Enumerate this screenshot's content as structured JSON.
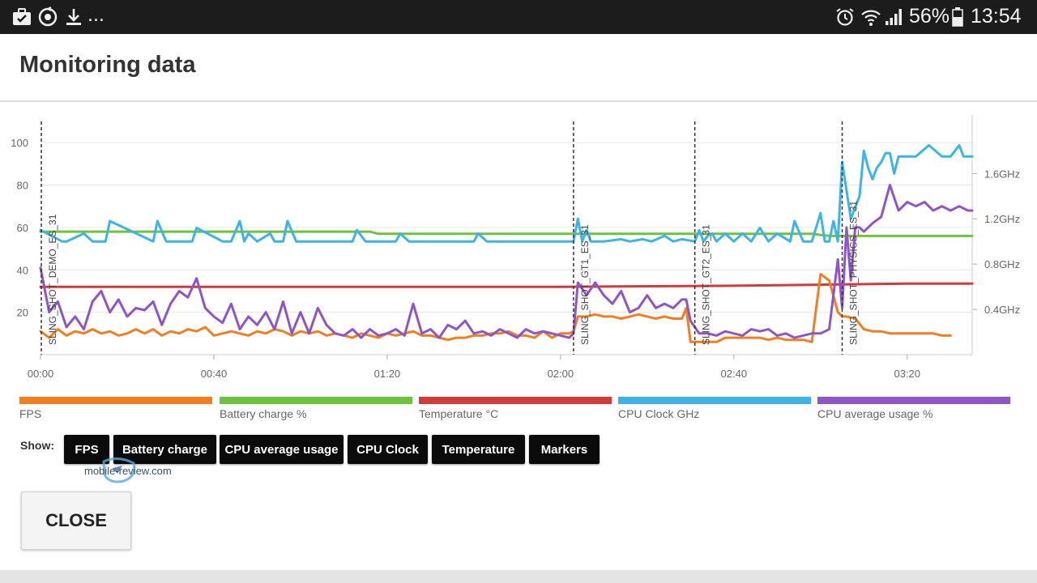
{
  "status_bar": {
    "icons_left": [
      "briefcase-check-icon",
      "sync-icon",
      "download-icon"
    ],
    "more": "...",
    "icons_right": [
      "alarm-icon",
      "wifi-icon",
      "signal-icon",
      "battery-icon"
    ],
    "battery": "56%",
    "time": "13:54"
  },
  "dialog": {
    "title": "Monitoring data",
    "show_label": "Show:",
    "toggles": [
      "FPS",
      "Battery charge",
      "CPU average usage",
      "CPU Clock",
      "Temperature",
      "Markers"
    ],
    "close_label": "CLOSE"
  },
  "watermark": "mobile-review.com",
  "legend": [
    {
      "label": "FPS",
      "color": "#f07f22"
    },
    {
      "label": "Battery charge %",
      "color": "#6fc23e"
    },
    {
      "label": "Temperature °C",
      "color": "#d23b3b"
    },
    {
      "label": "CPU Clock GHz",
      "color": "#3fb3e6"
    },
    {
      "label": "CPU average usage %",
      "color": "#8e55c5"
    }
  ],
  "chart_data": {
    "type": "line",
    "x_ticks": [
      "00:00",
      "00:40",
      "01:20",
      "02:00",
      "02:40",
      "03:20"
    ],
    "x_tick_seconds": [
      0,
      40,
      80,
      120,
      160,
      200
    ],
    "xlim": [
      0,
      215
    ],
    "y_left_ticks": [
      "100",
      "80",
      "60",
      "40",
      "20"
    ],
    "ylim_left": [
      0,
      110
    ],
    "y_right_ticks": [
      "1.6GHz",
      "1.2GHz",
      "0.8GHz",
      "0.4GHz"
    ],
    "ylim_right_ghz": [
      0,
      2.06
    ],
    "grid": true,
    "markers": [
      {
        "label": "SLING_SHOT_DEMO_ES_31",
        "x": 0
      },
      {
        "label": "SLING_SHOT_GT1_ES_31",
        "x": 123
      },
      {
        "label": "SLING_SHOT_GT2_ES_31",
        "x": 151
      },
      {
        "label": "SLING_SHOT_PHYSICS_ES_31",
        "x": 185
      }
    ],
    "series": [
      {
        "name": "Battery charge %",
        "color": "#6fc23e",
        "axis": "left",
        "x": [
          0,
          76,
          78,
          123,
          178,
          182,
          215
        ],
        "y": [
          58,
          58,
          57,
          57,
          57,
          56,
          56
        ]
      },
      {
        "name": "Temperature °C",
        "color": "#d23b3b",
        "axis": "left",
        "x": [
          0,
          40,
          80,
          120,
          160,
          180,
          200,
          215
        ],
        "y": [
          32,
          32,
          32,
          32,
          32.5,
          33,
          33.5,
          33.5
        ]
      },
      {
        "name": "CPU Clock GHz",
        "color": "#3fb3e6",
        "axis": "right",
        "x": [
          0,
          5,
          6,
          10,
          12,
          15,
          16,
          26,
          27,
          29,
          30,
          35,
          36,
          42,
          44,
          46,
          47,
          48,
          50,
          53,
          54,
          56,
          57,
          59,
          60,
          72,
          73,
          75,
          82,
          83,
          85,
          100,
          101,
          103,
          123,
          124,
          125,
          126,
          127,
          128,
          130,
          134,
          136,
          139,
          141,
          144,
          146,
          148,
          151,
          152,
          153,
          154,
          155,
          156,
          158,
          160,
          162,
          164,
          166,
          168,
          170,
          173,
          174,
          176,
          178,
          180,
          181,
          182,
          183,
          184,
          185,
          186,
          187,
          188,
          189,
          190,
          191,
          192,
          193,
          194,
          195,
          196,
          197,
          198,
          199,
          200,
          202,
          205,
          208,
          210,
          212,
          213,
          214,
          215
        ],
        "y": [
          1.1,
          1.0,
          1.0,
          1.07,
          1.0,
          1.0,
          1.18,
          1.0,
          1.18,
          1.0,
          1.0,
          1.0,
          1.12,
          1.0,
          1.0,
          1.18,
          1.0,
          1.07,
          1.0,
          1.07,
          1.0,
          1.0,
          1.18,
          1.0,
          1.0,
          1.0,
          1.1,
          1.0,
          1.0,
          1.07,
          1.0,
          1.0,
          1.07,
          1.0,
          1.0,
          1.2,
          1.0,
          1.1,
          1.0,
          1.0,
          1.0,
          1.02,
          1.0,
          1.02,
          1.0,
          1.05,
          1.0,
          1.02,
          1.0,
          1.1,
          1.0,
          1.05,
          1.07,
          1.0,
          1.07,
          1.0,
          1.07,
          1.0,
          1.12,
          1.0,
          1.07,
          1.0,
          1.18,
          1.0,
          1.0,
          1.25,
          1.0,
          1.0,
          1.18,
          1.0,
          1.7,
          1.45,
          1.2,
          1.3,
          1.4,
          1.8,
          1.65,
          1.55,
          1.65,
          1.7,
          1.78,
          1.78,
          1.6,
          1.75,
          1.75,
          1.75,
          1.75,
          1.85,
          1.75,
          1.75,
          1.85,
          1.75,
          1.75,
          1.75
        ]
      },
      {
        "name": "FPS",
        "color": "#f07f22",
        "axis": "left",
        "x": [
          0,
          2,
          4,
          6,
          8,
          10,
          12,
          14,
          16,
          18,
          20,
          22,
          24,
          26,
          28,
          30,
          32,
          34,
          36,
          38,
          40,
          42,
          44,
          46,
          48,
          50,
          52,
          54,
          56,
          58,
          60,
          62,
          64,
          66,
          68,
          70,
          72,
          74,
          76,
          78,
          80,
          82,
          84,
          86,
          88,
          90,
          92,
          94,
          96,
          98,
          100,
          102,
          104,
          106,
          108,
          110,
          112,
          114,
          116,
          118,
          120,
          122,
          123,
          124,
          126,
          128,
          130,
          132,
          134,
          136,
          138,
          140,
          142,
          144,
          146,
          148,
          149,
          150,
          152,
          154,
          156,
          158,
          160,
          162,
          164,
          166,
          168,
          170,
          172,
          174,
          176,
          178,
          180,
          182,
          184,
          185,
          186,
          188,
          190,
          192,
          194,
          196,
          198,
          200,
          202,
          204,
          206,
          208,
          210
        ],
        "y": [
          11,
          8,
          12,
          9,
          11,
          10,
          12,
          10,
          11,
          9,
          10,
          12,
          10,
          12,
          9,
          11,
          10,
          12,
          11,
          13,
          9,
          10,
          11,
          10,
          9,
          11,
          10,
          12,
          11,
          9,
          11,
          10,
          11,
          9,
          10,
          9,
          8,
          10,
          9,
          8,
          10,
          9,
          10,
          11,
          9,
          9,
          8,
          7,
          8,
          8,
          9,
          9,
          10,
          10,
          11,
          9,
          9,
          8,
          11,
          8,
          10,
          10,
          11,
          18,
          18,
          19,
          18,
          18,
          17,
          18,
          19,
          18,
          17,
          18,
          17,
          17,
          22,
          6,
          6,
          6,
          6,
          8,
          8,
          8,
          8,
          8,
          7,
          8,
          7,
          7,
          7,
          6,
          38,
          35,
          20,
          18,
          18,
          17,
          12,
          11,
          11,
          10,
          10,
          10,
          10,
          10,
          10,
          9,
          9
        ]
      },
      {
        "name": "CPU average usage %",
        "color": "#8e55c5",
        "axis": "left",
        "x": [
          0,
          2,
          4,
          6,
          8,
          10,
          12,
          14,
          16,
          18,
          20,
          22,
          24,
          26,
          28,
          30,
          32,
          34,
          36,
          38,
          40,
          42,
          44,
          46,
          48,
          50,
          52,
          54,
          56,
          58,
          60,
          62,
          64,
          66,
          68,
          70,
          72,
          74,
          76,
          78,
          80,
          82,
          84,
          86,
          88,
          90,
          92,
          94,
          96,
          98,
          100,
          102,
          104,
          106,
          108,
          110,
          112,
          114,
          116,
          118,
          120,
          122,
          123,
          124,
          126,
          128,
          130,
          132,
          134,
          136,
          138,
          140,
          142,
          144,
          146,
          148,
          149,
          150,
          152,
          154,
          156,
          158,
          160,
          162,
          164,
          166,
          168,
          170,
          172,
          174,
          176,
          178,
          180,
          182,
          184,
          185,
          186,
          187,
          188,
          189,
          190,
          192,
          194,
          196,
          198,
          200,
          202,
          204,
          206,
          208,
          210,
          212,
          214,
          215
        ],
        "y": [
          41,
          20,
          25,
          13,
          18,
          12,
          25,
          30,
          20,
          26,
          18,
          22,
          21,
          25,
          14,
          24,
          30,
          27,
          36,
          22,
          18,
          15,
          24,
          12,
          18,
          14,
          20,
          12,
          25,
          10,
          20,
          10,
          22,
          14,
          10,
          9,
          12,
          8,
          12,
          9,
          10,
          12,
          9,
          24,
          10,
          12,
          8,
          14,
          12,
          16,
          10,
          11,
          9,
          12,
          10,
          8,
          12,
          10,
          11,
          10,
          9,
          8,
          10,
          34,
          28,
          34,
          28,
          24,
          30,
          20,
          22,
          28,
          22,
          24,
          22,
          26,
          26,
          16,
          10,
          10,
          9,
          11,
          10,
          9,
          12,
          11,
          12,
          9,
          10,
          8,
          9,
          10,
          10,
          12,
          45,
          22,
          60,
          35,
          60,
          60,
          58,
          62,
          65,
          80,
          68,
          72,
          70,
          72,
          68,
          70,
          68,
          70,
          68,
          68
        ]
      }
    ]
  }
}
